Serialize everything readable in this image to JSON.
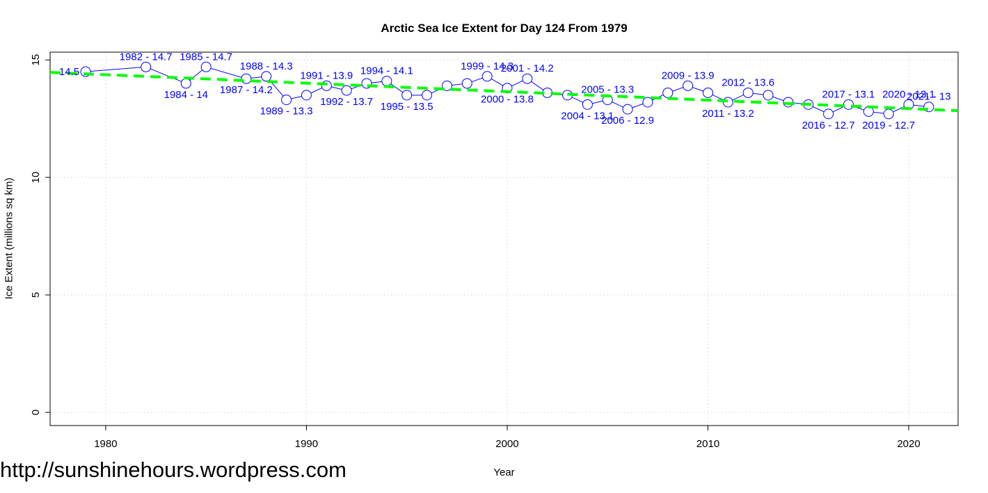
{
  "footer": {
    "url_text": "http://sunshinehours.wordpress.com"
  },
  "colors": {
    "background": "#ffffff",
    "axis": "#000000",
    "grid": "#d4d4d4",
    "series": "#0000ff",
    "point_label": "#0000ff",
    "trend": "#00ff00"
  },
  "chart_data": {
    "type": "line",
    "title": "Arctic Sea Ice Extent for Day 124 From 1979",
    "xlabel": "Year",
    "ylabel": "Ice Extent (millions sq km)",
    "x_ticks": [
      1980,
      1990,
      2000,
      2010,
      2020
    ],
    "y_ticks": [
      0,
      5,
      10,
      15
    ],
    "xlim": [
      1977.23,
      2022.46
    ],
    "ylim": [
      -0.56,
      15.33
    ],
    "grid": true,
    "legend": "none",
    "series": [
      {
        "name": "day-124-ice-extent",
        "color": "#0000ff",
        "marker": "open-circle",
        "points": [
          {
            "year": 1979,
            "value": 14.5,
            "label": "14.5",
            "label_pos": "left"
          },
          {
            "year": 1982,
            "value": 14.7,
            "label": "1982 - 14.7",
            "label_pos": "above"
          },
          {
            "year": 1984,
            "value": 14.0,
            "label": "1984 - 14",
            "label_pos": "below"
          },
          {
            "year": 1985,
            "value": 14.7,
            "label": "1985 - 14.7",
            "label_pos": "above"
          },
          {
            "year": 1987,
            "value": 14.2,
            "label": "1987 - 14.2",
            "label_pos": "below"
          },
          {
            "year": 1988,
            "value": 14.3,
            "label": "1988 - 14.3",
            "label_pos": "above"
          },
          {
            "year": 1989,
            "value": 13.3,
            "label": "1989 - 13.3",
            "label_pos": "below"
          },
          {
            "year": 1990,
            "value": 13.5,
            "label": "",
            "label_pos": ""
          },
          {
            "year": 1991,
            "value": 13.9,
            "label": "1991 - 13.9",
            "label_pos": "above"
          },
          {
            "year": 1992,
            "value": 13.7,
            "label": "1992 - 13.7",
            "label_pos": "below"
          },
          {
            "year": 1993,
            "value": 14.0,
            "label": "",
            "label_pos": ""
          },
          {
            "year": 1994,
            "value": 14.1,
            "label": "1994 - 14.1",
            "label_pos": "above"
          },
          {
            "year": 1995,
            "value": 13.5,
            "label": "1995 - 13.5",
            "label_pos": "below"
          },
          {
            "year": 1996,
            "value": 13.5,
            "label": "",
            "label_pos": ""
          },
          {
            "year": 1997,
            "value": 13.9,
            "label": "",
            "label_pos": ""
          },
          {
            "year": 1998,
            "value": 14.0,
            "label": "",
            "label_pos": ""
          },
          {
            "year": 1999,
            "value": 14.3,
            "label": "1999 - 14.3",
            "label_pos": "above"
          },
          {
            "year": 2000,
            "value": 13.8,
            "label": "2000 - 13.8",
            "label_pos": "below"
          },
          {
            "year": 2001,
            "value": 14.2,
            "label": "2001 - 14.2",
            "label_pos": "above"
          },
          {
            "year": 2002,
            "value": 13.6,
            "label": "",
            "label_pos": ""
          },
          {
            "year": 2003,
            "value": 13.5,
            "label": "",
            "label_pos": ""
          },
          {
            "year": 2004,
            "value": 13.1,
            "label": "2004 - 13.1",
            "label_pos": "below"
          },
          {
            "year": 2005,
            "value": 13.3,
            "label": "2005 - 13.3",
            "label_pos": "above"
          },
          {
            "year": 2006,
            "value": 12.9,
            "label": "2006 - 12.9",
            "label_pos": "below"
          },
          {
            "year": 2007,
            "value": 13.2,
            "label": "",
            "label_pos": ""
          },
          {
            "year": 2008,
            "value": 13.6,
            "label": "",
            "label_pos": ""
          },
          {
            "year": 2009,
            "value": 13.9,
            "label": "2009 - 13.9",
            "label_pos": "above"
          },
          {
            "year": 2010,
            "value": 13.6,
            "label": "",
            "label_pos": ""
          },
          {
            "year": 2011,
            "value": 13.2,
            "label": "2011 - 13.2",
            "label_pos": "below"
          },
          {
            "year": 2012,
            "value": 13.6,
            "label": "2012 - 13.6",
            "label_pos": "above"
          },
          {
            "year": 2013,
            "value": 13.5,
            "label": "",
            "label_pos": ""
          },
          {
            "year": 2014,
            "value": 13.2,
            "label": "",
            "label_pos": ""
          },
          {
            "year": 2015,
            "value": 13.1,
            "label": "",
            "label_pos": ""
          },
          {
            "year": 2016,
            "value": 12.7,
            "label": "2016 - 12.7",
            "label_pos": "below"
          },
          {
            "year": 2017,
            "value": 13.1,
            "label": "2017 - 13.1",
            "label_pos": "above"
          },
          {
            "year": 2018,
            "value": 12.8,
            "label": "",
            "label_pos": ""
          },
          {
            "year": 2019,
            "value": 12.7,
            "label": "2019 - 12.7",
            "label_pos": "below"
          },
          {
            "year": 2020,
            "value": 13.1,
            "label": "2020 - 13.1",
            "label_pos": "above"
          },
          {
            "year": 2021,
            "value": 13.0,
            "label": "2021 - 13",
            "label_pos": "above"
          }
        ]
      }
    ],
    "trend": {
      "color": "#00ff00",
      "style": "dashed",
      "start": {
        "year": 1977.23,
        "value": 14.47
      },
      "end": {
        "year": 2022.46,
        "value": 12.84
      }
    }
  }
}
